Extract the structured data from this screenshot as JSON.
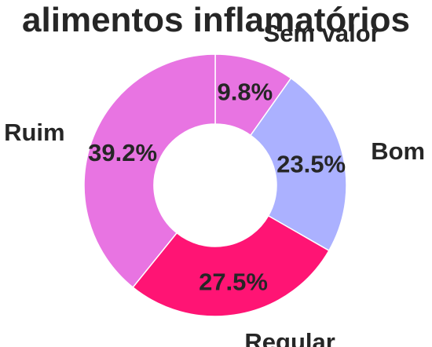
{
  "chart_data": {
    "type": "pie",
    "donut": true,
    "title": "alimentos inflamatórios",
    "slices": [
      {
        "label": "Sem valor",
        "value": 9.8,
        "pct_label": "9.8%",
        "color": "#e874e2"
      },
      {
        "label": "Bom",
        "value": 23.5,
        "pct_label": "23.5%",
        "color": "#abb1ff"
      },
      {
        "label": "Regular",
        "value": 27.5,
        "pct_label": "27.5%",
        "color": "#ff1474"
      },
      {
        "label": "Ruim",
        "value": 39.2,
        "pct_label": "39.2%",
        "color": "#e874e2"
      }
    ],
    "start_angle": "top",
    "direction": "clockwise",
    "legend": "none"
  }
}
